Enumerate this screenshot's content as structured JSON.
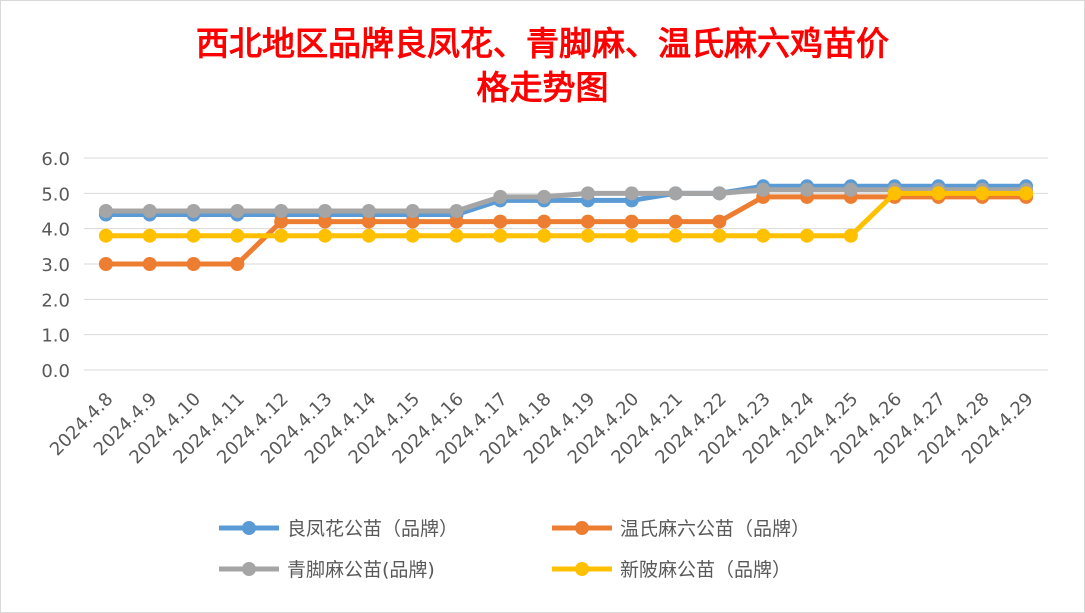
{
  "chart_data": {
    "type": "line",
    "title_lines": [
      "西北地区品牌良凤花、青脚麻、温氏麻六鸡苗价",
      "格走势图"
    ],
    "categories": [
      "2024.4.8",
      "2024.4.9",
      "2024.4.10",
      "2024.4.11",
      "2024.4.12",
      "2024.4.13",
      "2024.4.14",
      "2024.4.15",
      "2024.4.16",
      "2024.4.17",
      "2024.4.18",
      "2024.4.19",
      "2024.4.20",
      "2024.4.21",
      "2024.4.22",
      "2024.4.23",
      "2024.4.24",
      "2024.4.25",
      "2024.4.26",
      "2024.4.27",
      "2024.4.28",
      "2024.4.29"
    ],
    "ylim": [
      0,
      6
    ],
    "yticks": [
      "0.0",
      "1.0",
      "2.0",
      "3.0",
      "4.0",
      "5.0",
      "6.0"
    ],
    "grid": true,
    "legend_position": "bottom",
    "series": [
      {
        "name": "良凤花公苗（品牌）",
        "color": "#5b9bd5",
        "values": [
          4.4,
          4.4,
          4.4,
          4.4,
          4.4,
          4.4,
          4.4,
          4.4,
          4.4,
          4.8,
          4.8,
          4.8,
          4.8,
          5.0,
          5.0,
          5.2,
          5.2,
          5.2,
          5.2,
          5.2,
          5.2,
          5.2
        ]
      },
      {
        "name": "温氏麻六公苗（品牌）",
        "color": "#ed7d31",
        "values": [
          3.0,
          3.0,
          3.0,
          3.0,
          4.2,
          4.2,
          4.2,
          4.2,
          4.2,
          4.2,
          4.2,
          4.2,
          4.2,
          4.2,
          4.2,
          4.9,
          4.9,
          4.9,
          4.9,
          4.9,
          4.9,
          4.9
        ]
      },
      {
        "name": "青脚麻公苗(品牌)",
        "color": "#a5a5a5",
        "values": [
          4.5,
          4.5,
          4.5,
          4.5,
          4.5,
          4.5,
          4.5,
          4.5,
          4.5,
          4.9,
          4.9,
          5.0,
          5.0,
          5.0,
          5.0,
          5.1,
          5.1,
          5.1,
          5.1,
          5.1,
          5.1,
          5.1
        ]
      },
      {
        "name": "新陂麻公苗（品牌）",
        "color": "#ffc000",
        "values": [
          3.8,
          3.8,
          3.8,
          3.8,
          3.8,
          3.8,
          3.8,
          3.8,
          3.8,
          3.8,
          3.8,
          3.8,
          3.8,
          3.8,
          3.8,
          3.8,
          3.8,
          3.8,
          5.0,
          5.0,
          5.0,
          5.0
        ]
      }
    ]
  }
}
